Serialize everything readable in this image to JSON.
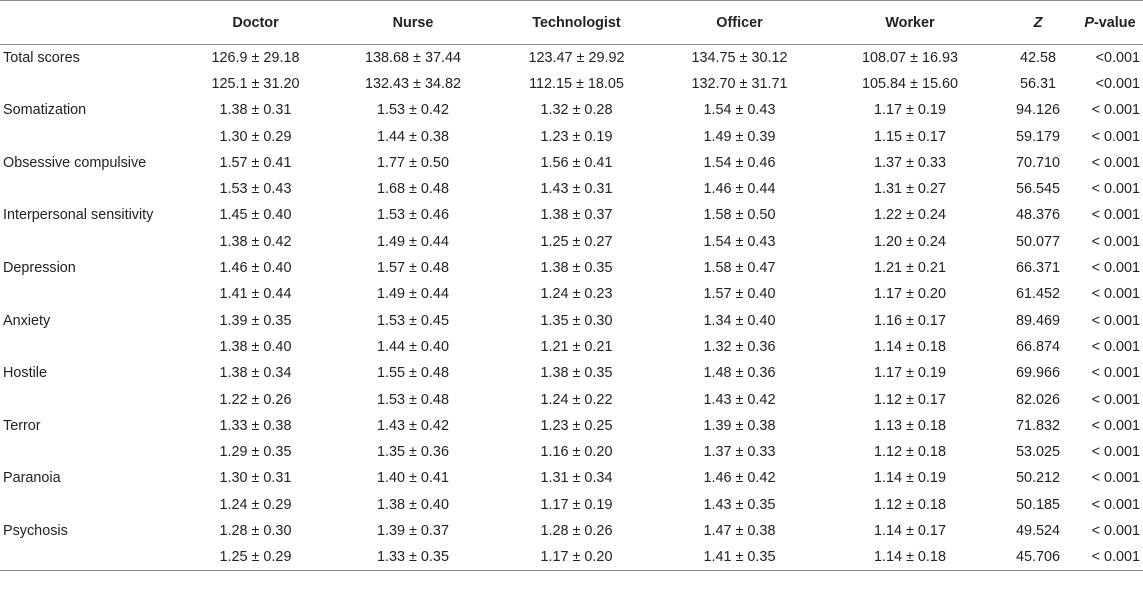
{
  "header": {
    "col0": "",
    "col1": "Doctor",
    "col2": "Nurse",
    "col3": "Technologist",
    "col4": "Officer",
    "col5": "Worker",
    "col6": "Z",
    "col7_italic": "P",
    "col7_rest": "-value"
  },
  "rows": [
    {
      "label": "Total scores",
      "v1": "126.9 ± 29.18",
      "v2": "138.68 ± 37.44",
      "v3": "123.47 ± 29.92",
      "v4": "134.75 ± 30.12",
      "v5": "108.07 ± 16.93",
      "z": "42.58",
      "p": "<0.001"
    },
    {
      "label": "",
      "v1": "125.1 ± 31.20",
      "v2": "132.43 ± 34.82",
      "v3": "112.15 ± 18.05",
      "v4": "132.70 ± 31.71",
      "v5": "105.84 ± 15.60",
      "z": "56.31",
      "p": "<0.001"
    },
    {
      "label": "Somatization",
      "v1": "1.38 ± 0.31",
      "v2": "1.53 ± 0.42",
      "v3": "1.32 ± 0.28",
      "v4": "1.54 ± 0.43",
      "v5": "1.17 ± 0.19",
      "z": "94.126",
      "p": "< 0.001"
    },
    {
      "label": "",
      "v1": "1.30 ± 0.29",
      "v2": "1.44 ± 0.38",
      "v3": "1.23 ± 0.19",
      "v4": "1.49 ± 0.39",
      "v5": "1.15 ± 0.17",
      "z": "59.179",
      "p": "< 0.001"
    },
    {
      "label": "Obsessive compulsive",
      "v1": "1.57 ± 0.41",
      "v2": "1.77 ± 0.50",
      "v3": "1.56 ± 0.41",
      "v4": "1.54 ± 0.46",
      "v5": "1.37 ± 0.33",
      "z": "70.710",
      "p": "< 0.001"
    },
    {
      "label": "",
      "v1": "1.53 ± 0.43",
      "v2": "1.68 ± 0.48",
      "v3": "1.43 ± 0.31",
      "v4": "1.46 ± 0.44",
      "v5": "1.31 ± 0.27",
      "z": "56.545",
      "p": "< 0.001"
    },
    {
      "label": "Interpersonal sensitivity",
      "v1": "1.45 ± 0.40",
      "v2": "1.53 ± 0.46",
      "v3": "1.38 ± 0.37",
      "v4": "1.58 ± 0.50",
      "v5": "1.22 ± 0.24",
      "z": "48.376",
      "p": "< 0.001"
    },
    {
      "label": "",
      "v1": "1.38 ± 0.42",
      "v2": "1.49 ± 0.44",
      "v3": "1.25 ± 0.27",
      "v4": "1.54 ± 0.43",
      "v5": "1.20 ± 0.24",
      "z": "50.077",
      "p": "< 0.001"
    },
    {
      "label": "Depression",
      "v1": "1.46 ± 0.40",
      "v2": "1.57 ± 0.48",
      "v3": "1.38 ± 0.35",
      "v4": "1.58 ± 0.47",
      "v5": "1.21 ± 0.21",
      "z": "66.371",
      "p": "< 0.001"
    },
    {
      "label": "",
      "v1": "1.41 ± 0.44",
      "v2": "1.49 ± 0.44",
      "v3": "1.24 ± 0.23",
      "v4": "1.57 ± 0.40",
      "v5": "1.17 ± 0.20",
      "z": "61.452",
      "p": "< 0.001"
    },
    {
      "label": "Anxiety",
      "v1": "1.39 ± 0.35",
      "v2": "1.53 ± 0.45",
      "v3": "1.35 ± 0.30",
      "v4": "1.34 ± 0.40",
      "v5": "1.16 ± 0.17",
      "z": "89.469",
      "p": "< 0.001"
    },
    {
      "label": "",
      "v1": "1.38 ± 0.40",
      "v2": "1.44 ± 0.40",
      "v3": "1.21 ± 0.21",
      "v4": "1.32 ± 0.36",
      "v5": "1.14 ± 0.18",
      "z": "66.874",
      "p": "< 0.001"
    },
    {
      "label": "Hostile",
      "v1": "1.38 ± 0.34",
      "v2": "1.55 ± 0.48",
      "v3": "1.38 ± 0.35",
      "v4": "1.48 ± 0.36",
      "v5": "1.17 ± 0.19",
      "z": "69.966",
      "p": "< 0.001"
    },
    {
      "label": "",
      "v1": "1.22 ± 0.26",
      "v2": "1.53 ± 0.48",
      "v3": "1.24 ± 0.22",
      "v4": "1.43 ± 0.42",
      "v5": "1.12 ± 0.17",
      "z": "82.026",
      "p": "< 0.001"
    },
    {
      "label": "Terror",
      "v1": "1.33 ± 0.38",
      "v2": "1.43 ± 0.42",
      "v3": "1.23 ± 0.25",
      "v4": "1.39 ± 0.38",
      "v5": "1.13 ± 0.18",
      "z": "71.832",
      "p": "< 0.001"
    },
    {
      "label": "",
      "v1": "1.29 ± 0.35",
      "v2": "1.35 ± 0.36",
      "v3": "1.16 ± 0.20",
      "v4": "1.37 ± 0.33",
      "v5": "1.12 ± 0.18",
      "z": "53.025",
      "p": "< 0.001"
    },
    {
      "label": "Paranoia",
      "v1": "1.30 ± 0.31",
      "v2": "1.40 ± 0.41",
      "v3": "1.31 ± 0.34",
      "v4": "1.46 ± 0.42",
      "v5": "1.14 ± 0.19",
      "z": "50.212",
      "p": "< 0.001"
    },
    {
      "label": "",
      "v1": "1.24 ± 0.29",
      "v2": "1.38 ± 0.40",
      "v3": "1.17 ± 0.19",
      "v4": "1.43 ± 0.35",
      "v5": "1.12 ± 0.18",
      "z": "50.185",
      "p": "< 0.001"
    },
    {
      "label": "Psychosis",
      "v1": "1.28 ± 0.30",
      "v2": "1.39 ± 0.37",
      "v3": "1.28 ± 0.26",
      "v4": "1.47 ± 0.38",
      "v5": "1.14 ± 0.17",
      "z": "49.524",
      "p": "< 0.001"
    },
    {
      "label": "",
      "v1": "1.25 ± 0.29",
      "v2": "1.33 ± 0.35",
      "v3": "1.17 ± 0.20",
      "v4": "1.41 ± 0.35",
      "v5": "1.14 ± 0.18",
      "z": "45.706",
      "p": "< 0.001"
    }
  ]
}
